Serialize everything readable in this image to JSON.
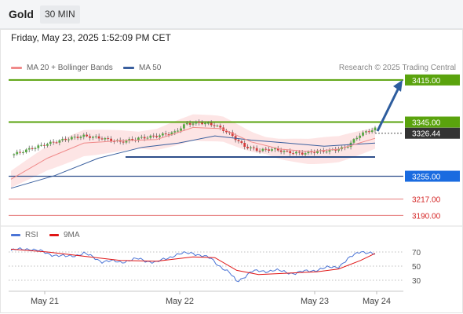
{
  "header": {
    "symbol": "Gold",
    "interval": "30 MIN",
    "timestamp": "Friday, May 23, 2025 1:52:09 PM CET",
    "credit": "Research © 2025 Trading Central"
  },
  "colors": {
    "resistance": "#5aa30d",
    "support": "#2d4e8a",
    "target_line": "#e67a7a",
    "target_label": "#d42424",
    "last_price_bg": "#333333",
    "bollinger_fill": "#fde0e0",
    "ma20": "#f08a8a",
    "ma50": "#3a5f9e",
    "candle_up": "#57a844",
    "candle_down": "#d43c3c",
    "rsi": "#4a74d6",
    "rsi_ma": "#e01515",
    "arrow": "#2e5d9e"
  },
  "chart_data": [
    {
      "type": "candlestick",
      "title": "Gold",
      "interval": "30 MIN",
      "legend": [
        {
          "name": "MA 20 + Bollinger Bands",
          "color": "#f08a8a"
        },
        {
          "name": "MA 50",
          "color": "#3a5f9e"
        }
      ],
      "y_range": [
        3180,
        3420
      ],
      "x_tick_labels": [
        "May 21",
        "May 22",
        "May 23",
        "May 24"
      ],
      "last_price": "3326.44",
      "levels": [
        {
          "label": "3415.00",
          "value": 3415.0,
          "kind": "resistance"
        },
        {
          "label": "3345.00",
          "value": 3345.0,
          "kind": "resistance"
        },
        {
          "label": "3255.00",
          "value": 3255.0,
          "kind": "support"
        },
        {
          "label": "3217.00",
          "value": 3217.0,
          "kind": "target"
        },
        {
          "label": "3190.00",
          "value": 3190.0,
          "kind": "target"
        }
      ],
      "consolidation_support": 3287,
      "scenario_arrow": {
        "from": 3330,
        "to": 3415
      },
      "close_path": [
        {
          "t": 0,
          "v": 3290
        },
        {
          "t": 0.05,
          "v": 3300
        },
        {
          "t": 0.1,
          "v": 3309
        },
        {
          "t": 0.16,
          "v": 3318
        },
        {
          "t": 0.2,
          "v": 3322
        },
        {
          "t": 0.25,
          "v": 3318
        },
        {
          "t": 0.3,
          "v": 3312
        },
        {
          "t": 0.35,
          "v": 3318
        },
        {
          "t": 0.4,
          "v": 3322
        },
        {
          "t": 0.45,
          "v": 3328
        },
        {
          "t": 0.48,
          "v": 3342
        },
        {
          "t": 0.52,
          "v": 3344
        },
        {
          "t": 0.56,
          "v": 3340
        },
        {
          "t": 0.6,
          "v": 3326
        },
        {
          "t": 0.64,
          "v": 3305
        },
        {
          "t": 0.68,
          "v": 3298
        },
        {
          "t": 0.72,
          "v": 3300
        },
        {
          "t": 0.76,
          "v": 3295
        },
        {
          "t": 0.8,
          "v": 3293
        },
        {
          "t": 0.84,
          "v": 3296
        },
        {
          "t": 0.88,
          "v": 3298
        },
        {
          "t": 0.92,
          "v": 3303
        },
        {
          "t": 0.96,
          "v": 3325
        },
        {
          "t": 1.0,
          "v": 3334
        }
      ],
      "ma20_path": [
        {
          "t": 0,
          "v": 3250
        },
        {
          "t": 0.1,
          "v": 3285
        },
        {
          "t": 0.2,
          "v": 3310
        },
        {
          "t": 0.3,
          "v": 3314
        },
        {
          "t": 0.4,
          "v": 3316
        },
        {
          "t": 0.5,
          "v": 3336
        },
        {
          "t": 0.58,
          "v": 3334
        },
        {
          "t": 0.66,
          "v": 3312
        },
        {
          "t": 0.74,
          "v": 3300
        },
        {
          "t": 0.82,
          "v": 3296
        },
        {
          "t": 0.9,
          "v": 3300
        },
        {
          "t": 1.0,
          "v": 3318
        }
      ],
      "ma50_path": [
        {
          "t": 0,
          "v": 3235
        },
        {
          "t": 0.12,
          "v": 3256
        },
        {
          "t": 0.24,
          "v": 3285
        },
        {
          "t": 0.36,
          "v": 3303
        },
        {
          "t": 0.46,
          "v": 3310
        },
        {
          "t": 0.56,
          "v": 3322
        },
        {
          "t": 0.66,
          "v": 3315
        },
        {
          "t": 0.76,
          "v": 3310
        },
        {
          "t": 0.86,
          "v": 3305
        },
        {
          "t": 1.0,
          "v": 3310
        }
      ]
    },
    {
      "type": "line",
      "title": "RSI",
      "legend": [
        {
          "name": "RSI",
          "color": "#4a74d6"
        },
        {
          "name": "9MA",
          "color": "#e01515"
        }
      ],
      "y_range": [
        20,
        80
      ],
      "tick_labels": [
        "70",
        "50",
        "30"
      ],
      "reference_levels": [
        70,
        50,
        30
      ],
      "series": [
        {
          "name": "RSI",
          "points": [
            {
              "t": 0,
              "v": 72
            },
            {
              "t": 0.05,
              "v": 75
            },
            {
              "t": 0.1,
              "v": 68
            },
            {
              "t": 0.15,
              "v": 63
            },
            {
              "t": 0.2,
              "v": 68
            },
            {
              "t": 0.25,
              "v": 57
            },
            {
              "t": 0.3,
              "v": 56
            },
            {
              "t": 0.35,
              "v": 60
            },
            {
              "t": 0.4,
              "v": 55
            },
            {
              "t": 0.45,
              "v": 66
            },
            {
              "t": 0.5,
              "v": 69
            },
            {
              "t": 0.55,
              "v": 60
            },
            {
              "t": 0.6,
              "v": 40
            },
            {
              "t": 0.62,
              "v": 28
            },
            {
              "t": 0.66,
              "v": 42
            },
            {
              "t": 0.72,
              "v": 44
            },
            {
              "t": 0.78,
              "v": 40
            },
            {
              "t": 0.84,
              "v": 45
            },
            {
              "t": 0.9,
              "v": 50
            },
            {
              "t": 0.96,
              "v": 72
            },
            {
              "t": 1.0,
              "v": 66
            }
          ]
        },
        {
          "name": "9MA",
          "points": [
            {
              "t": 0,
              "v": 74
            },
            {
              "t": 0.1,
              "v": 70
            },
            {
              "t": 0.2,
              "v": 64
            },
            {
              "t": 0.3,
              "v": 58
            },
            {
              "t": 0.4,
              "v": 57
            },
            {
              "t": 0.5,
              "v": 63
            },
            {
              "t": 0.56,
              "v": 62
            },
            {
              "t": 0.62,
              "v": 44
            },
            {
              "t": 0.68,
              "v": 38
            },
            {
              "t": 0.76,
              "v": 40
            },
            {
              "t": 0.84,
              "v": 42
            },
            {
              "t": 0.9,
              "v": 46
            },
            {
              "t": 0.96,
              "v": 58
            },
            {
              "t": 1.0,
              "v": 68
            }
          ]
        }
      ]
    }
  ]
}
